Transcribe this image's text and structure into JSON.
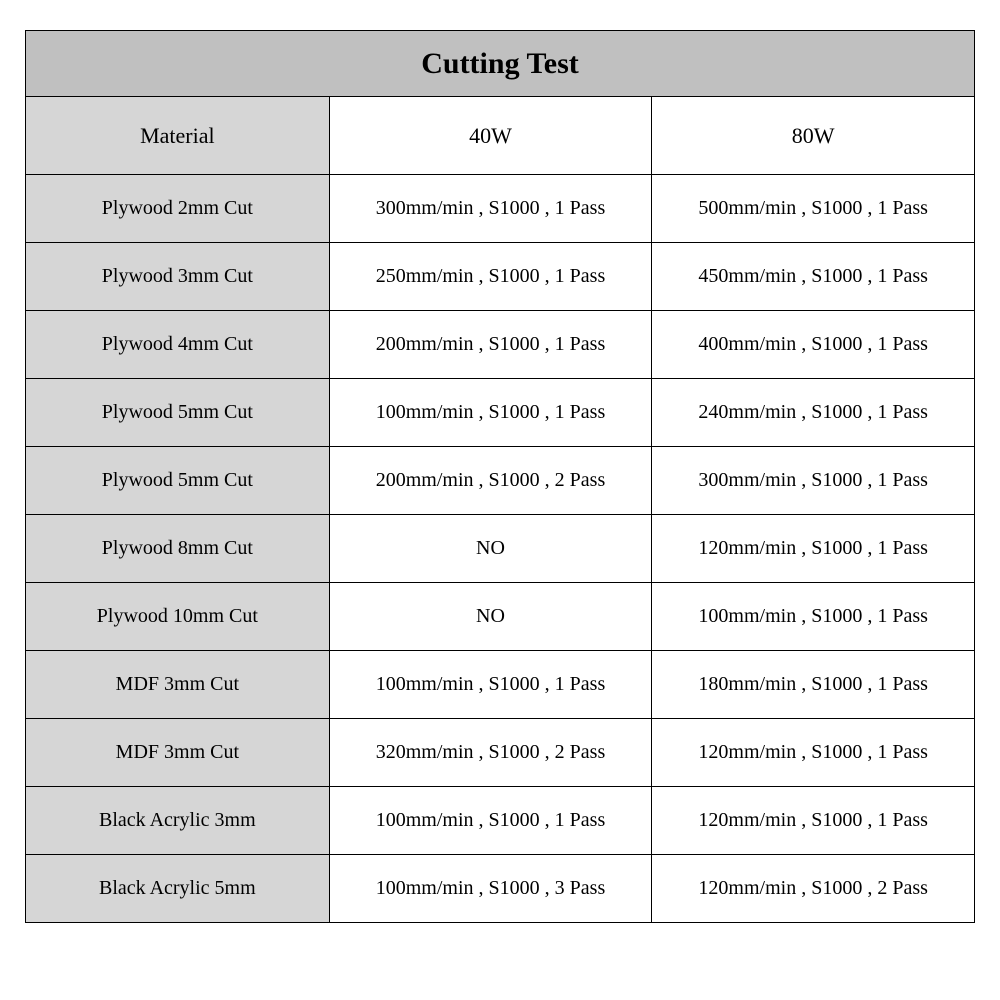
{
  "title": "Cutting Test",
  "columns": {
    "material": "Material",
    "power1": "40W",
    "power2": "80W"
  },
  "rows": [
    {
      "material": "Plywood 2mm Cut",
      "p1": "300mm/min , S1000 , 1 Pass",
      "p2": "500mm/min , S1000 , 1 Pass"
    },
    {
      "material": "Plywood 3mm Cut",
      "p1": "250mm/min , S1000 , 1 Pass",
      "p2": "450mm/min , S1000 , 1 Pass"
    },
    {
      "material": "Plywood 4mm Cut",
      "p1": "200mm/min , S1000 , 1 Pass",
      "p2": "400mm/min , S1000 , 1 Pass"
    },
    {
      "material": "Plywood 5mm Cut",
      "p1": "100mm/min , S1000 , 1 Pass",
      "p2": "240mm/min , S1000 , 1 Pass"
    },
    {
      "material": "Plywood 5mm Cut",
      "p1": "200mm/min , S1000 , 2 Pass",
      "p2": "300mm/min , S1000 , 1 Pass"
    },
    {
      "material": "Plywood 8mm Cut",
      "p1": "NO",
      "p2": "120mm/min , S1000 , 1 Pass"
    },
    {
      "material": "Plywood 10mm Cut",
      "p1": "NO",
      "p2": "100mm/min , S1000 , 1 Pass"
    },
    {
      "material": "MDF 3mm Cut",
      "p1": "100mm/min , S1000 , 1 Pass",
      "p2": "180mm/min , S1000 , 1 Pass"
    },
    {
      "material": "MDF 3mm Cut",
      "p1": "320mm/min , S1000 , 2 Pass",
      "p2": "120mm/min , S1000 , 1 Pass"
    },
    {
      "material": "Black Acrylic 3mm",
      "p1": "100mm/min , S1000 , 1 Pass",
      "p2": "120mm/min , S1000 , 1 Pass"
    },
    {
      "material": "Black Acrylic 5mm",
      "p1": "100mm/min , S1000 , 3 Pass",
      "p2": "120mm/min , S1000 , 2 Pass"
    }
  ],
  "colors": {
    "title_bg": "#c0c0c0",
    "material_bg": "#d6d6d6",
    "data_bg": "#ffffff",
    "border": "#000000",
    "text": "#000000"
  },
  "typography": {
    "title_fontsize": 30,
    "header_fontsize": 22,
    "body_fontsize": 20,
    "font_family": "Times New Roman"
  }
}
